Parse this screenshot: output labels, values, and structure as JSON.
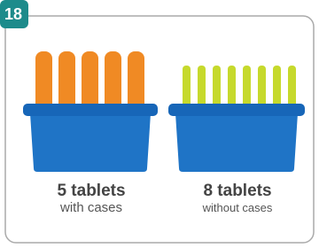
{
  "badge": "18",
  "items": [
    {
      "title": "5 tablets",
      "subtitle": "with cases"
    },
    {
      "title": "8 tablets",
      "subtitle": "without cases"
    }
  ]
}
